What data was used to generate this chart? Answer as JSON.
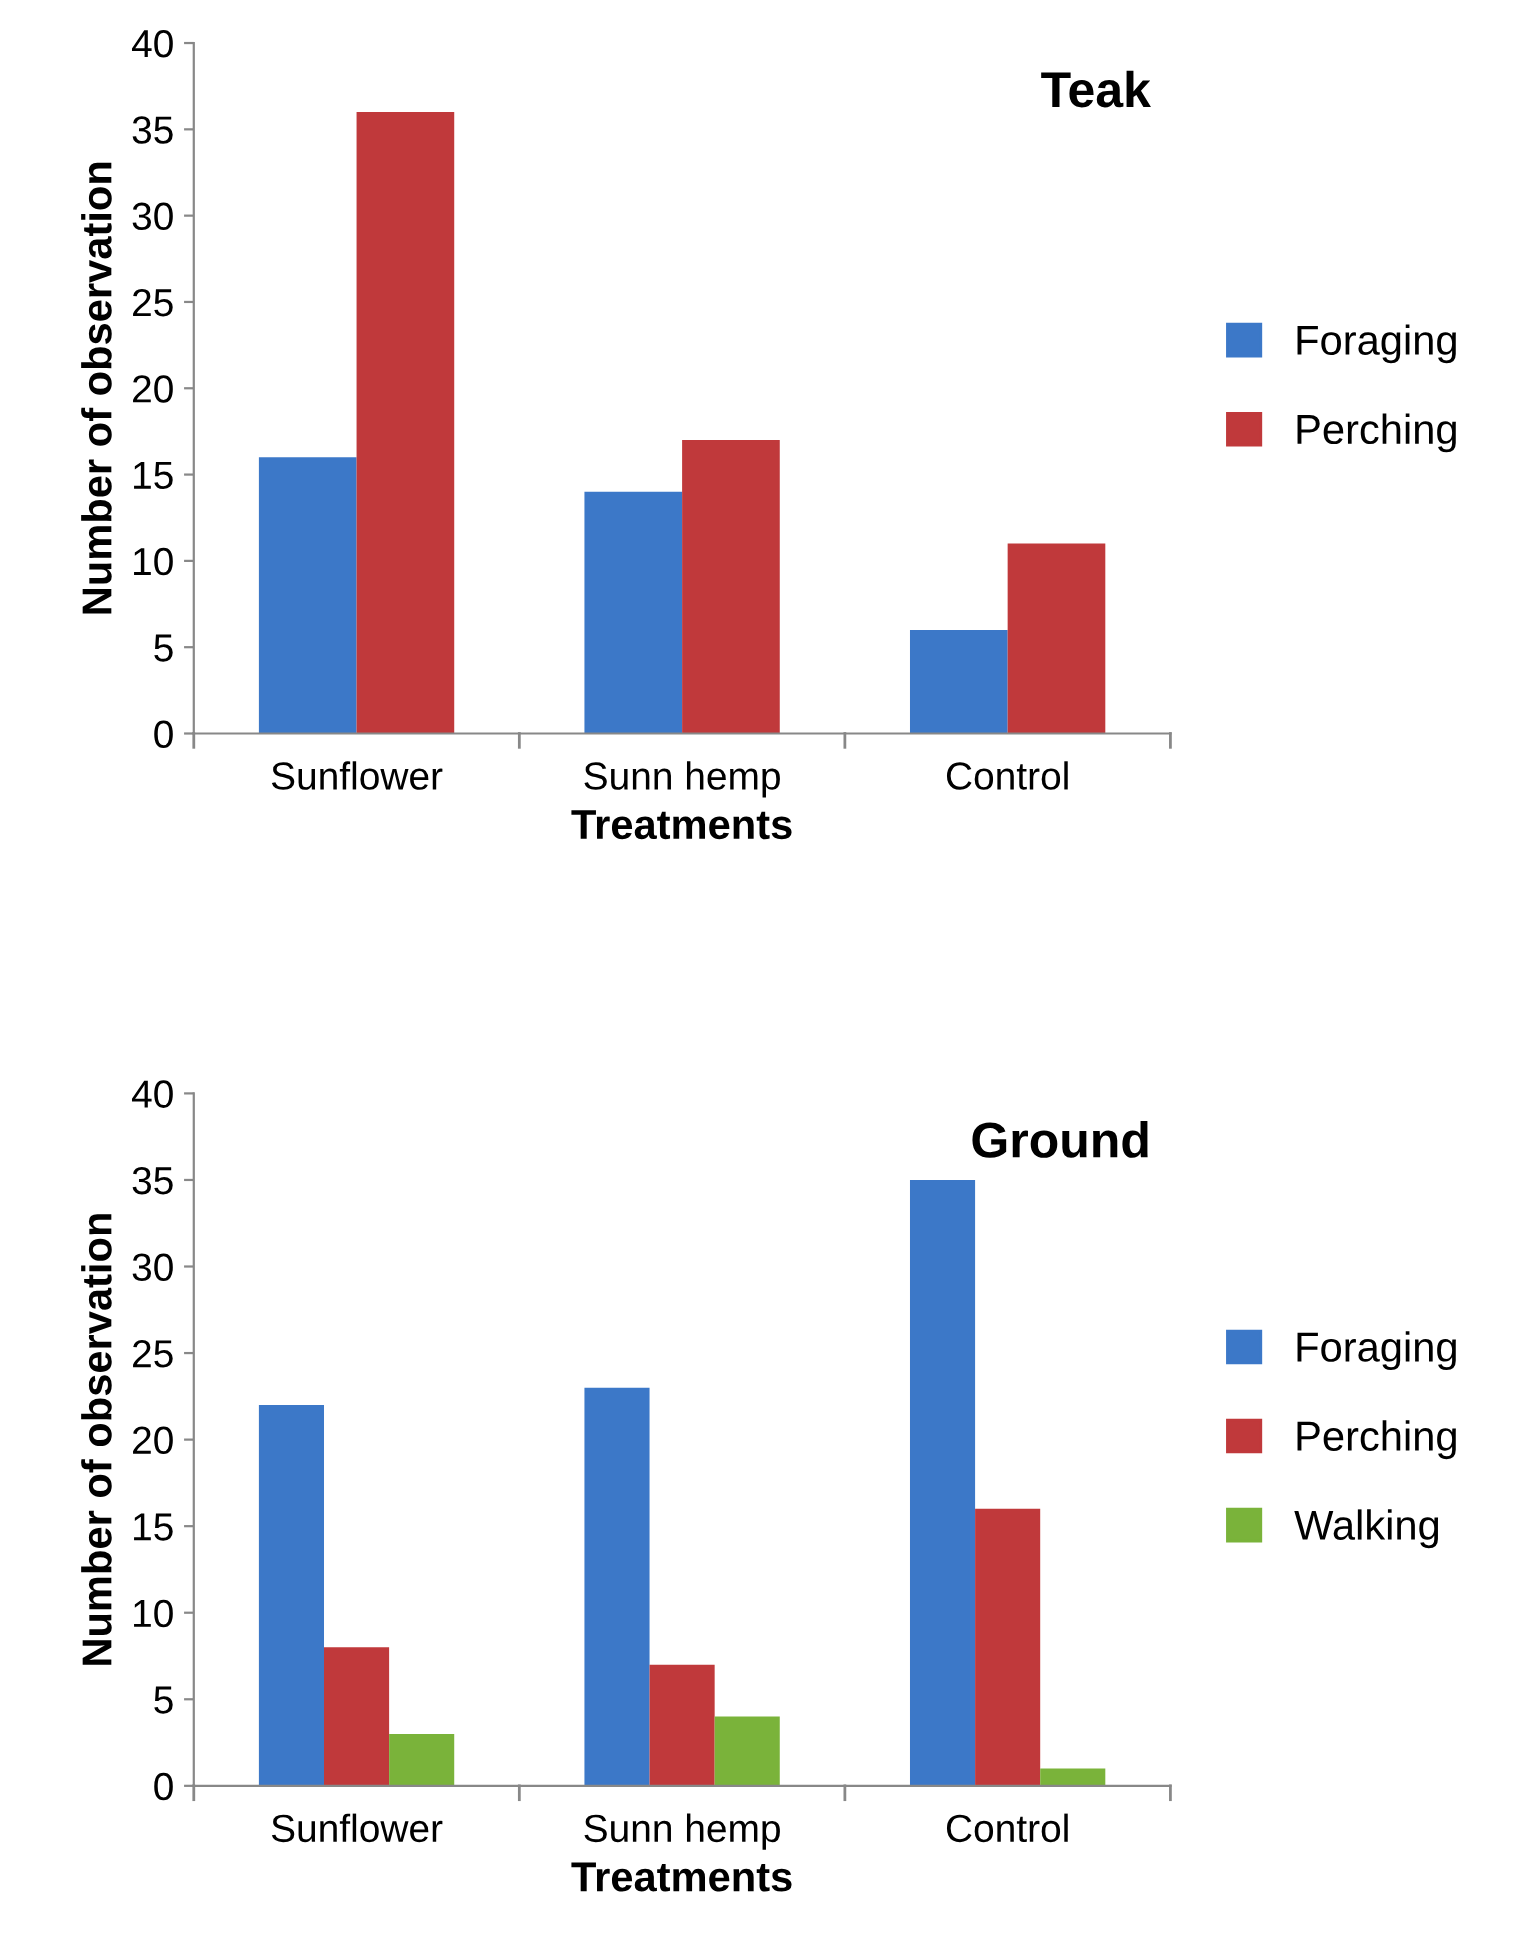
{
  "chart_data": [
    {
      "type": "bar",
      "title": "Teak",
      "xlabel": "Treatments",
      "ylabel": "Number of observation",
      "categories": [
        "Sunflower",
        "Sunn hemp",
        "Control"
      ],
      "series": [
        {
          "name": "Foraging",
          "color": "#3c78c8",
          "values": [
            16,
            14,
            6
          ]
        },
        {
          "name": "Perching",
          "color": "#c0393b",
          "values": [
            36,
            17,
            11
          ]
        }
      ],
      "ylim": [
        0,
        40
      ],
      "yticks": [
        0,
        5,
        10,
        15,
        20,
        25,
        30,
        35,
        40
      ],
      "grid": false,
      "legend": "right"
    },
    {
      "type": "bar",
      "title": "Ground",
      "xlabel": "Treatments",
      "ylabel": "Number of observation",
      "categories": [
        "Sunflower",
        "Sunn hemp",
        "Control"
      ],
      "series": [
        {
          "name": "Foraging",
          "color": "#3c78c8",
          "values": [
            22,
            23,
            35
          ]
        },
        {
          "name": "Perching",
          "color": "#c0393b",
          "values": [
            8,
            7,
            16
          ]
        },
        {
          "name": "Walking",
          "color": "#7ab33a",
          "values": [
            3,
            4,
            1
          ]
        }
      ],
      "ylim": [
        0,
        40
      ],
      "yticks": [
        0,
        5,
        10,
        15,
        20,
        25,
        30,
        35,
        40
      ],
      "grid": false,
      "legend": "right"
    }
  ]
}
